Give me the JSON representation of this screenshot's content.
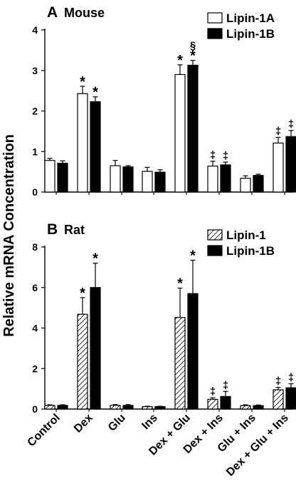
{
  "shared": {
    "ylabel": "Relative mRNA Concentration",
    "categories": [
      "Control",
      "Dex",
      "Glu",
      "Ins",
      "Dex + Glu",
      "Dex + Ins",
      "Glu + Ins",
      "Dex + Glu + Ins"
    ]
  },
  "chart_data": [
    {
      "type": "bar",
      "panel_letter": "A",
      "title": "Mouse",
      "ylim": [
        0,
        4
      ],
      "yticks": [
        0,
        1,
        2,
        3,
        4
      ],
      "legend_position": "top-right",
      "categories": [
        "Control",
        "Dex",
        "Glu",
        "Ins",
        "Dex + Glu",
        "Dex + Ins",
        "Glu + Ins",
        "Dex + Glu + Ins"
      ],
      "series": [
        {
          "name": "Lipin-1A",
          "fill": "open",
          "values": [
            0.78,
            2.43,
            0.65,
            0.51,
            2.9,
            0.64,
            0.34,
            1.21
          ],
          "errors": [
            0.05,
            0.18,
            0.13,
            0.1,
            0.24,
            0.12,
            0.06,
            0.14
          ],
          "markers": [
            "",
            "*",
            "",
            "",
            "*",
            "‡",
            "",
            "‡"
          ]
        },
        {
          "name": "Lipin-1B",
          "fill": "solid",
          "values": [
            0.71,
            2.23,
            0.62,
            0.49,
            3.13,
            0.67,
            0.41,
            1.37
          ],
          "errors": [
            0.06,
            0.12,
            0.03,
            0.06,
            0.12,
            0.07,
            0.03,
            0.15
          ],
          "markers": [
            "",
            "*",
            "",
            "",
            "*",
            "‡",
            "",
            "‡"
          ],
          "markers_extra": [
            "",
            "",
            "",
            "",
            "§",
            "",
            "",
            ""
          ]
        }
      ]
    },
    {
      "type": "bar",
      "panel_letter": "B",
      "title": "Rat",
      "ylim": [
        0,
        8
      ],
      "yticks": [
        0,
        2,
        4,
        6,
        8
      ],
      "legend_position": "top-right",
      "categories": [
        "Control",
        "Dex",
        "Glu",
        "Ins",
        "Dex + Glu",
        "Dex + Ins",
        "Glu + Ins",
        "Dex + Glu + Ins"
      ],
      "series": [
        {
          "name": "Lipin-1",
          "fill": "hatched",
          "values": [
            0.18,
            4.68,
            0.18,
            0.12,
            4.52,
            0.48,
            0.17,
            0.95
          ],
          "errors": [
            0.03,
            0.82,
            0.04,
            0.02,
            1.45,
            0.08,
            0.04,
            0.12
          ],
          "markers": [
            "",
            "*",
            "",
            "",
            "*",
            "‡",
            "",
            "‡"
          ]
        },
        {
          "name": "Lipin-1B",
          "fill": "solid",
          "values": [
            0.18,
            6.0,
            0.18,
            0.12,
            5.7,
            0.62,
            0.17,
            1.05
          ],
          "errors": [
            0.03,
            1.2,
            0.04,
            0.02,
            1.65,
            0.25,
            0.03,
            0.2
          ],
          "markers": [
            "",
            "*",
            "",
            "",
            "*",
            "‡",
            "",
            "‡"
          ]
        }
      ]
    }
  ]
}
